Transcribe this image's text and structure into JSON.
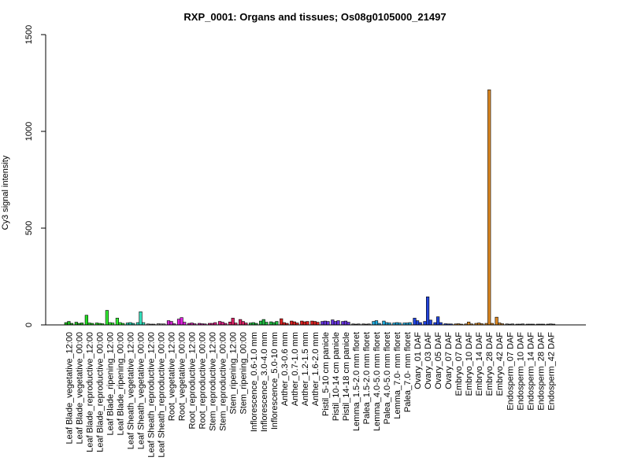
{
  "chart_data": {
    "type": "bar",
    "title": "RXP_0001: Organs and tissues; Os08g0105000_21497",
    "ylabel": "Cy3 signal intensity",
    "xlabel": "",
    "ylim": [
      0,
      1500
    ],
    "yticks": [
      0,
      500,
      1000,
      1500
    ],
    "grid": false,
    "legend": "none",
    "categories": [
      "Leaf Blade_vegetative_12:00",
      "Leaf Blade_vegetative_00:00",
      "Leaf Blade_reproductive_12:00",
      "Leaf Blade_reproductive_00:00",
      "Leaf Blade_ripening_12:00",
      "Leaf Blade_ripening_00:00",
      "Leaf Sheath_vegetative_12:00",
      "Leaf Sheath_vegetative_00:00",
      "Leaf Sheath_reproductive_12:00",
      "Leaf Sheath_reproductive_00:00",
      "Root_vegetative_12:00",
      "Root_vegetative_00:00",
      "Root_reproductive_12:00",
      "Root_reproductive_00:00",
      "Stem_reproductive_12:00",
      "Stem_reproductive_00:00",
      "Stem_ripening_12:00",
      "Stem_ripening_00:00",
      "Inflorescence_0.6-1.0 mm",
      "Inflorescence_3.0-4.0 mm",
      "Inflorescence_5.0-10 mm",
      "Anther_0.3-0.6 mm",
      "Anther_0.7-1.0 mm",
      "Anther_1.2-1.5 mm",
      "Anther_1.6-2.0 mm",
      "Pistil_5-10 cm panicle",
      "Pistil_10-14 cm panicle",
      "Pistil_14-18 cm panicle",
      "Lemma_1.5-2.0 mm floret",
      "Palea_1.5-2.0 mm floret",
      "Lemma_4.0-5.0 mm floret",
      "Palea_4.0-5.0 mm floret",
      "Lemma_7.0- mm floret",
      "Palea_7.0- mm floret",
      "Ovary_01 DAF",
      "Ovary_03 DAF",
      "Ovary_05 DAF",
      "Ovary_07 DAF",
      "Embryo_07 DAF",
      "Embryo_10 DAF",
      "Embryo_14 DAF",
      "Embryo_28 DAF",
      "Embryo_42 DAF",
      "Endosperm_07 DAF",
      "Endosperm_10 DAF",
      "Endosperm_14 DAF",
      "Endosperm_28 DAF",
      "Endosperm_42 DAF"
    ],
    "bar_groups": [
      {
        "values": [
          12,
          18,
          8
        ],
        "color": "#22bb22"
      },
      {
        "values": [
          14,
          8,
          10
        ],
        "color": "#22bb22"
      },
      {
        "values": [
          50,
          10,
          8
        ],
        "color": "#22dd22"
      },
      {
        "values": [
          10,
          8,
          6
        ],
        "color": "#22dd22"
      },
      {
        "values": [
          75,
          12,
          10
        ],
        "color": "#33ee33"
      },
      {
        "values": [
          35,
          12,
          8
        ],
        "color": "#33ee33"
      },
      {
        "values": [
          10,
          12,
          8
        ],
        "color": "#22ccaa"
      },
      {
        "values": [
          12,
          68,
          12
        ],
        "color": "#33ddbb"
      },
      {
        "values": [
          5,
          4,
          4
        ],
        "color": "#aaaaaa"
      },
      {
        "values": [
          6,
          5,
          5
        ],
        "color": "#aaaaaa"
      },
      {
        "values": [
          22,
          18,
          6
        ],
        "color": "#cc22cc"
      },
      {
        "values": [
          30,
          38,
          14
        ],
        "color": "#dd22dd"
      },
      {
        "values": [
          8,
          10,
          6
        ],
        "color": "#cc22aa"
      },
      {
        "values": [
          8,
          6,
          5
        ],
        "color": "#cc22aa"
      },
      {
        "values": [
          8,
          8,
          12
        ],
        "color": "#dd2288"
      },
      {
        "values": [
          18,
          14,
          8
        ],
        "color": "#dd2288"
      },
      {
        "values": [
          15,
          35,
          10
        ],
        "color": "#dd2266"
      },
      {
        "values": [
          28,
          18,
          10
        ],
        "color": "#dd2266"
      },
      {
        "values": [
          10,
          12,
          8
        ],
        "color": "#22bb44"
      },
      {
        "values": [
          20,
          28,
          14
        ],
        "color": "#22bb44"
      },
      {
        "values": [
          16,
          12,
          18
        ],
        "color": "#22bb44"
      },
      {
        "values": [
          32,
          12,
          8
        ],
        "color": "#dd2222"
      },
      {
        "values": [
          20,
          16,
          10
        ],
        "color": "#dd2222"
      },
      {
        "values": [
          20,
          16,
          18
        ],
        "color": "#dd2222"
      },
      {
        "values": [
          20,
          18,
          14
        ],
        "color": "#dd2222"
      },
      {
        "values": [
          18,
          20,
          18
        ],
        "color": "#6633dd"
      },
      {
        "values": [
          26,
          18,
          22
        ],
        "color": "#6633dd"
      },
      {
        "values": [
          18,
          20,
          14
        ],
        "color": "#6633dd"
      },
      {
        "values": [
          5,
          4,
          5
        ],
        "color": "#777777"
      },
      {
        "values": [
          5,
          4,
          5
        ],
        "color": "#777777"
      },
      {
        "values": [
          18,
          22,
          8
        ],
        "color": "#22aadd"
      },
      {
        "values": [
          20,
          12,
          10
        ],
        "color": "#22aadd"
      },
      {
        "values": [
          10,
          12,
          10
        ],
        "color": "#22aadd"
      },
      {
        "values": [
          10,
          10,
          12
        ],
        "color": "#22aadd"
      },
      {
        "values": [
          35,
          22,
          12
        ],
        "color": "#2244dd"
      },
      {
        "values": [
          18,
          145,
          25
        ],
        "color": "#2244dd"
      },
      {
        "values": [
          12,
          42,
          12
        ],
        "color": "#2244dd"
      },
      {
        "values": [
          6,
          5,
          5
        ],
        "color": "#2244dd"
      },
      {
        "values": [
          5,
          6,
          4
        ],
        "color": "#dd8822"
      },
      {
        "values": [
          5,
          15,
          5
        ],
        "color": "#dd8822"
      },
      {
        "values": [
          8,
          10,
          6
        ],
        "color": "#dd8822"
      },
      {
        "values": [
          8,
          1215,
          8
        ],
        "color": "#dd8822"
      },
      {
        "values": [
          40,
          10,
          6
        ],
        "color": "#dd8822"
      },
      {
        "values": [
          5,
          4,
          5
        ],
        "color": "#777777"
      },
      {
        "values": [
          4,
          4,
          5
        ],
        "color": "#777777"
      },
      {
        "values": [
          4,
          4,
          4
        ],
        "color": "#777777"
      },
      {
        "values": [
          4,
          4,
          4
        ],
        "color": "#777777"
      },
      {
        "values": [
          4,
          5,
          4
        ],
        "color": "#777777"
      }
    ]
  }
}
